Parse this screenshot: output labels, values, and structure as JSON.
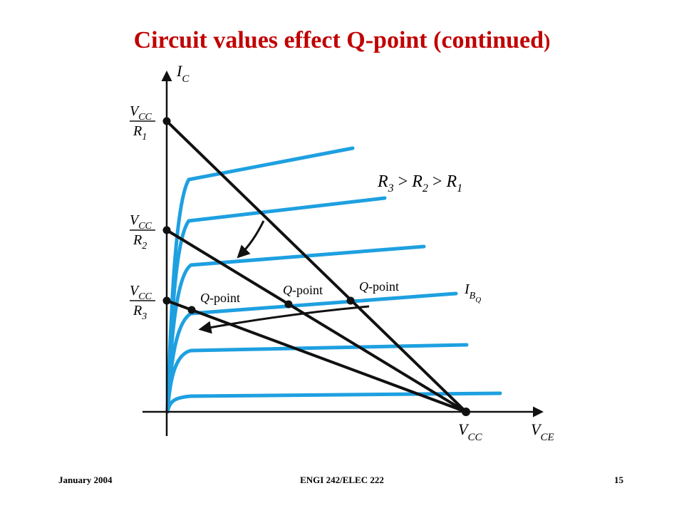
{
  "title": {
    "text": "Circuit values effect Q-point (continued",
    "close": ")"
  },
  "colors": {
    "title": "#c00000",
    "curve": "#1ea0e0",
    "line": "#111111"
  },
  "diagram": {
    "y_axis": {
      "symbol": "I",
      "sub": "C"
    },
    "x_axis": {
      "symbol": "V",
      "sub": "CE"
    },
    "vcc_axis": {
      "symbol": "V",
      "sub": "CC"
    },
    "ib_label": {
      "symbol": "I",
      "sub": "B",
      "subsub": "Q"
    },
    "intercepts": [
      {
        "num_symbol": "V",
        "num_sub": "CC",
        "den_symbol": "R",
        "den_sub": "1"
      },
      {
        "num_symbol": "V",
        "num_sub": "CC",
        "den_symbol": "R",
        "den_sub": "2"
      },
      {
        "num_symbol": "V",
        "num_sub": "CC",
        "den_symbol": "R",
        "den_sub": "3"
      }
    ],
    "relation": {
      "r3": "R",
      "r3_sub": "3",
      "gt1": " > ",
      "r2": "R",
      "r2_sub": "2",
      "gt2": " > ",
      "r1": "R",
      "r1_sub": "1"
    },
    "q_point_labels": [
      "Q",
      "Q",
      "Q"
    ],
    "q_point_suffix": "-point"
  },
  "footer": {
    "date": "January 2004",
    "course": "ENGI 242/ELEC 222",
    "page": "15"
  }
}
